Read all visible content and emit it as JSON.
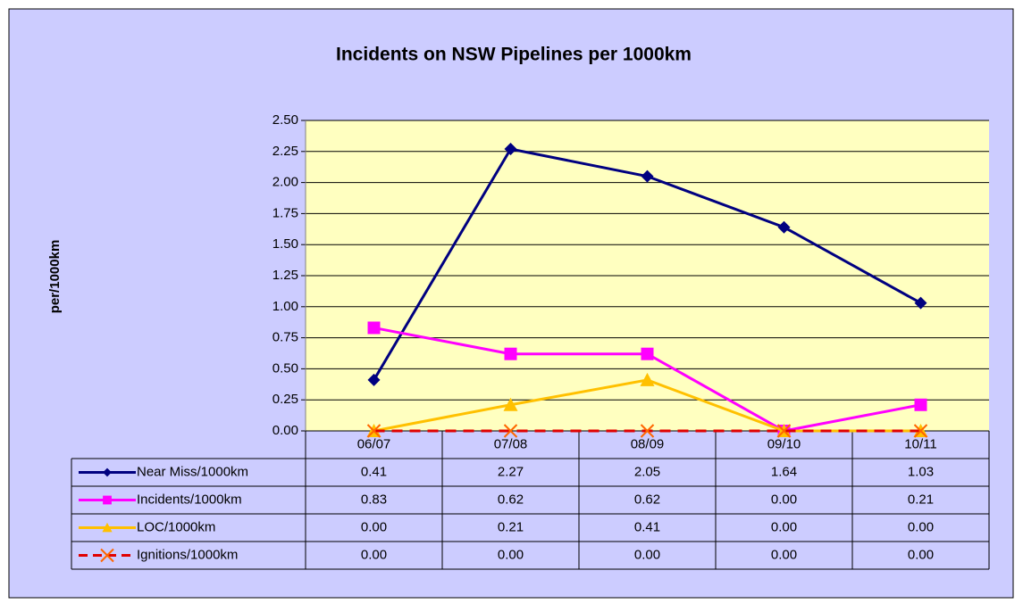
{
  "chart_data": {
    "type": "line",
    "title": "Incidents on NSW Pipelines per 1000km",
    "y_label": "per/1000km",
    "categories": [
      "06/07",
      "07/08",
      "08/09",
      "09/10",
      "10/11"
    ],
    "series": [
      {
        "name": "Near Miss/1000km",
        "color": "#000080",
        "marker": "diamond",
        "dash": false,
        "values": [
          0.41,
          2.27,
          2.05,
          1.64,
          1.03
        ],
        "value_labels": [
          "0.41",
          "2.27",
          "2.05",
          "1.64",
          "1.03"
        ]
      },
      {
        "name": "Incidents/1000km",
        "color": "#ff00ff",
        "marker": "square",
        "dash": false,
        "values": [
          0.83,
          0.62,
          0.62,
          0,
          0.21
        ],
        "value_labels": [
          "0.83",
          "0.62",
          "0.62",
          "0.00",
          "0.21"
        ]
      },
      {
        "name": "LOC/1000km",
        "color": "#ffc000",
        "marker": "triangle",
        "dash": false,
        "values": [
          0,
          0.21,
          0.41,
          0,
          0
        ],
        "value_labels": [
          "0.00",
          "0.21",
          "0.41",
          "0.00",
          "0.00"
        ]
      },
      {
        "name": "Ignitions/1000km",
        "color": "#e00000",
        "marker": "x",
        "dash": true,
        "values": [
          0,
          0,
          0,
          0,
          0
        ],
        "value_labels": [
          "0.00",
          "0.00",
          "0.00",
          "0.00",
          "0.00"
        ]
      }
    ],
    "ylim": [
      0,
      2.5
    ],
    "yticks": [
      {
        "value": 0,
        "label": "0.00"
      },
      0.25,
      {
        "value": 0.5,
        "label": "0.50"
      },
      0.75,
      {
        "value": 1,
        "label": "1.00"
      },
      1.25,
      {
        "value": 1.5,
        "label": "1.50"
      },
      1.75,
      {
        "value": 2,
        "label": "2.00"
      },
      2.25,
      {
        "value": 2.5,
        "label": "2.50"
      }
    ],
    "grid": true
  }
}
